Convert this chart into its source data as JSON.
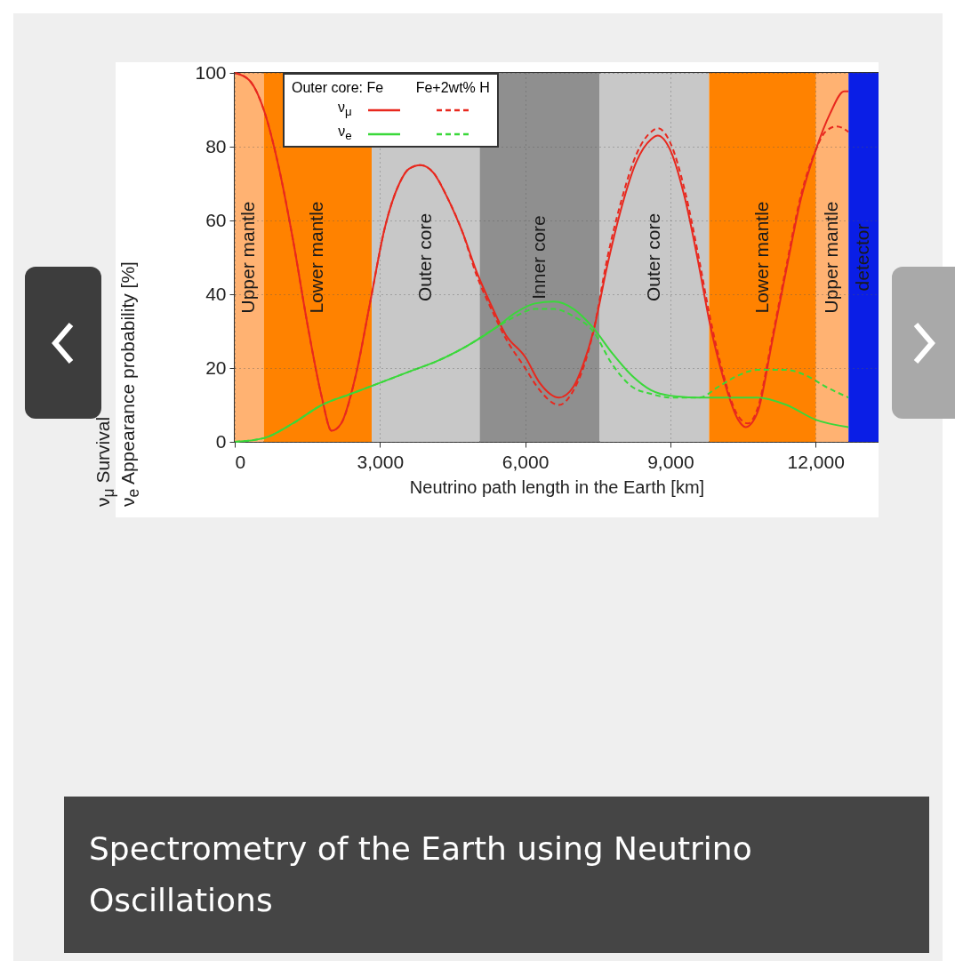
{
  "chart_data": {
    "type": "line",
    "title": "Spectrometry of the Earth using Neutrino Oscillations",
    "xlabel": "Neutrino path length in the Earth [km]",
    "ylabel": "ν$_{μ}$ Survival\nν$_{e}$ Appearance probability [%]",
    "legend_title": "Outer core: Fe",
    "annotations": [
      "Fe+2wt% H"
    ],
    "xlim": [
      0,
      13300
    ],
    "ylim": [
      0,
      100
    ],
    "xticks": [
      0,
      {
        "value": 3000,
        "label": "3,000"
      },
      {
        "value": 6000,
        "label": "6,000"
      },
      {
        "value": 9000,
        "label": "9,000"
      },
      {
        "value": 12000,
        "label": "12,000"
      }
    ],
    "yticks": [
      0,
      20,
      40,
      60,
      80,
      100
    ],
    "grid": true,
    "legend": "top left",
    "marker": "none",
    "bands": [
      {
        "axis": "x",
        "from": 0,
        "to": 600,
        "label": "Upper mantle",
        "color": "#ffb272"
      },
      {
        "axis": "x",
        "from": 600,
        "to": 2830,
        "label": "Lower mantle",
        "color": "#ff8200"
      },
      {
        "axis": "x",
        "from": 2830,
        "to": 5060,
        "label": "Outer core",
        "color": "#c8c8c8"
      },
      {
        "axis": "x",
        "from": 5060,
        "to": 7540,
        "label": "Inner core",
        "color": "#8f8f8f"
      },
      {
        "axis": "x",
        "from": 7540,
        "to": 9800,
        "label": "Outer core",
        "color": "#c8c8c8"
      },
      {
        "axis": "x",
        "from": 9800,
        "to": 12010,
        "label": "Lower mantle",
        "color": "#ff8200"
      },
      {
        "axis": "x",
        "from": 12010,
        "to": 12680,
        "label": "Upper mantle",
        "color": "#ffb272"
      },
      {
        "axis": "x",
        "from": 12680,
        "to": 13300,
        "label": "detector",
        "color": "#0a1ee6"
      }
    ],
    "series": [
      {
        "name": "ν$_{μ}$",
        "color": "#e8281e",
        "line_style": "solid",
        "x": [
          0,
          300,
          600,
          900,
          1200,
          1500,
          1800,
          2000,
          2200,
          2500,
          2800,
          3100,
          3400,
          3600,
          3840,
          4100,
          4400,
          4700,
          5000,
          5300,
          5600,
          6000,
          6300,
          6700,
          7000,
          7200,
          7410,
          7700,
          8000,
          8300,
          8600,
          8740,
          9000,
          9300,
          9600,
          9800,
          10100,
          10400,
          10550,
          10800,
          11100,
          11400,
          11700,
          12000,
          12300,
          12590,
          12680
        ],
        "values": [
          100,
          98,
          90,
          75,
          55,
          32,
          12,
          3,
          5,
          18,
          38,
          58,
          70,
          74,
          75,
          73,
          66,
          57,
          46,
          37,
          29,
          23,
          16,
          12,
          15,
          21,
          30,
          48,
          64,
          76,
          82,
          83,
          79,
          66,
          47,
          33,
          17,
          6,
          4,
          8,
          27,
          47,
          66,
          79,
          89,
          95,
          95
        ]
      },
      {
        "name": "ν$_{e}$",
        "color": "#3ad83a",
        "line_style": "solid",
        "x": [
          0,
          600,
          1200,
          1800,
          2400,
          3000,
          3600,
          4200,
          4800,
          5400,
          5800,
          6200,
          6600,
          7000,
          7400,
          7800,
          8200,
          8600,
          9000,
          9600,
          10200,
          10800,
          11400,
          12000,
          12680
        ],
        "values": [
          0,
          1,
          5,
          10,
          13,
          16,
          19,
          22,
          26,
          31,
          35,
          37.5,
          38,
          36,
          31,
          24,
          18,
          14,
          12.5,
          12,
          12,
          12,
          10,
          6,
          4
        ]
      },
      {
        "color": "#e8281e",
        "line_style": "dashed",
        "x": [
          0,
          300,
          600,
          900,
          1200,
          1500,
          1800,
          2000,
          2200,
          2500,
          2800,
          3100,
          3400,
          3600,
          3840,
          4100,
          4400,
          4700,
          5000,
          5300,
          5600,
          6000,
          6300,
          6700,
          7000,
          7200,
          7410,
          7700,
          8000,
          8300,
          8600,
          8740,
          9000,
          9300,
          9600,
          9800,
          10100,
          10400,
          10600,
          10800,
          11100,
          11400,
          11700,
          12000,
          12200,
          12440,
          12680
        ],
        "values": [
          100,
          98,
          90,
          75,
          55,
          32,
          12,
          3,
          5,
          18,
          38,
          58,
          70,
          74,
          75,
          73,
          66,
          57,
          45,
          36,
          28,
          20,
          14,
          10,
          14,
          20,
          30,
          50,
          66,
          78,
          84,
          85,
          81,
          68,
          49,
          35,
          18,
          7,
          5,
          9,
          28,
          48,
          67,
          79,
          84,
          85.5,
          84
        ]
      },
      {
        "color": "#3ad83a",
        "line_style": "dashed",
        "x": [
          0,
          600,
          1200,
          1800,
          2400,
          3000,
          3600,
          4200,
          4800,
          5400,
          5800,
          6200,
          6600,
          7000,
          7400,
          7800,
          8200,
          8600,
          9000,
          9600,
          10000,
          10400,
          10800,
          11400,
          11800,
          12200,
          12680
        ],
        "values": [
          0,
          1,
          5,
          10,
          13,
          16,
          19,
          22,
          26,
          31,
          34,
          36,
          36,
          34,
          30,
          21,
          15,
          13,
          12,
          12,
          15,
          18,
          19.5,
          19.5,
          18,
          15,
          12
        ]
      }
    ]
  }
}
